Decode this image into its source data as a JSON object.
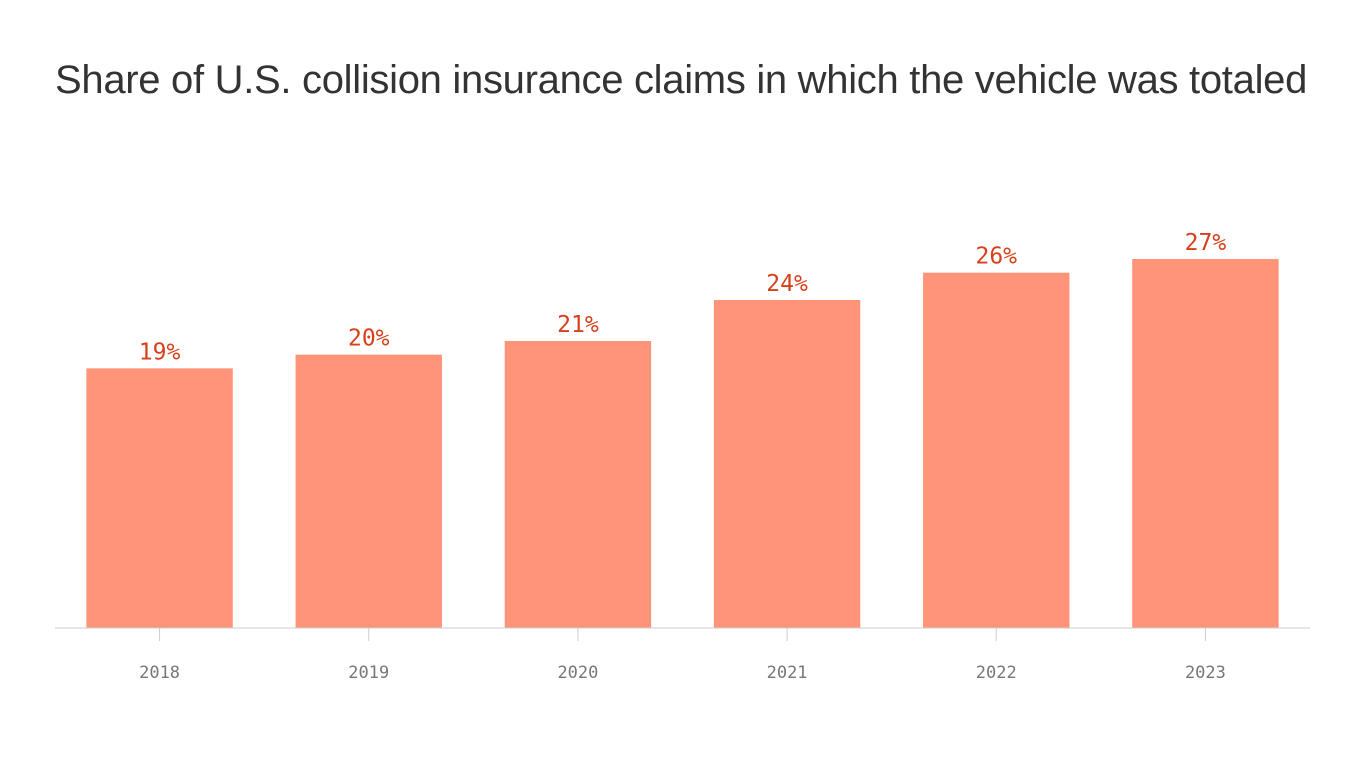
{
  "chart_data": {
    "type": "bar",
    "title": "Share of U.S. collision insurance claims in which the vehicle was totaled",
    "categories": [
      "2018",
      "2019",
      "2020",
      "2021",
      "2022",
      "2023"
    ],
    "values": [
      19,
      20,
      21,
      24,
      26,
      27
    ],
    "value_labels": [
      "19%",
      "20%",
      "21%",
      "24%",
      "26%",
      "27%"
    ],
    "color": "#ff9479"
  }
}
